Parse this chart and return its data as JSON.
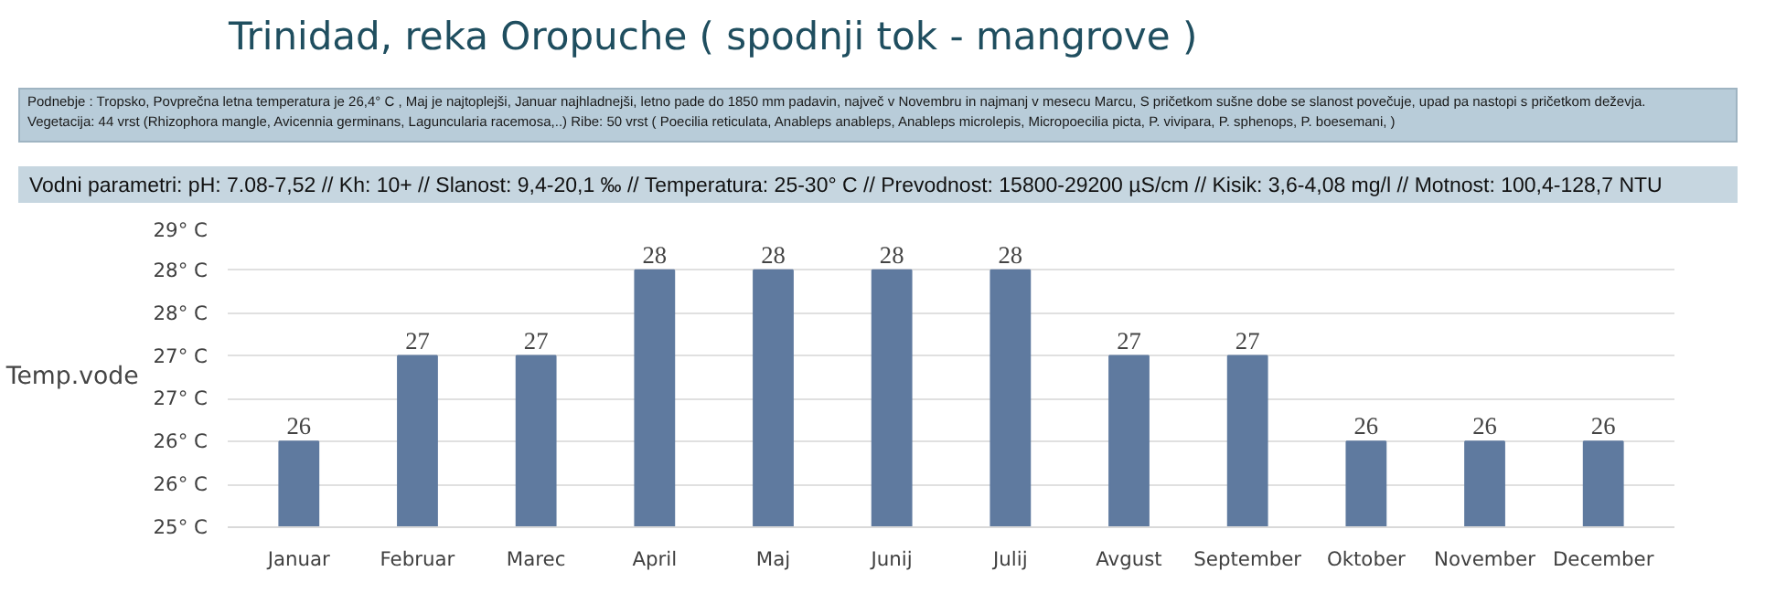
{
  "chart_data": {
    "type": "bar",
    "title": "Trinidad, reka Oropuche  ( spodnji tok - mangrove )",
    "annotations": [
      "Podnebje : Tropsko, Povprečna letna temperatura je 26,4° C  , Maj je najtoplejši, Januar najhladnejši, letno pade do 1850 mm padavin, največ v  Novembru in najmanj v mesecu Marcu, S pričetkom sušne dobe se slanost povečuje, upad pa nastopi s pričetkom deževja.",
      "Vegetacija: 44 vrst (Rhizophora mangle, Avicennia germinans, Laguncularia racemosa,..)    Ribe: 50 vrst  ( Poecilia reticulata, Anableps anableps, Anableps microlepis, Micropoecilia  picta, P. vivipara, P. sphenops, P.  boesemani, )",
      "Vodni parametri: pH: 7.08-7,52 // Kh: 10+ // Slanost: 9,4-20,1 ‰ // Temperatura: 25-30° C // Prevodnost: 15800-29200 µS/cm // Kisik: 3,6-4,08 mg/l  //  Motnost: 100,4-128,7 NTU"
    ],
    "ylabel": "Temp.vode",
    "categories": [
      "Januar",
      "Februar",
      "Marec",
      "April",
      "Maj",
      "Junij",
      "Julij",
      "Avgust",
      "September",
      "Oktober",
      "November",
      "December"
    ],
    "values": [
      26,
      27,
      27,
      28,
      28,
      28,
      28,
      27,
      27,
      26,
      26,
      26
    ],
    "color": "#5f7a9f",
    "ylim": [
      25,
      28.5
    ],
    "yticks": [
      {
        "value": 25,
        "label": "25° C"
      },
      {
        "value": 25.5,
        "label": "26° C"
      },
      {
        "value": 26,
        "label": "26° C"
      },
      {
        "value": 26.5,
        "label": "27° C"
      },
      {
        "value": 27,
        "label": "27° C"
      },
      {
        "value": 27.5,
        "label": "28° C"
      },
      {
        "value": 28,
        "label": "28° C"
      },
      {
        "value": 28.5,
        "label": "29° C"
      }
    ],
    "grid": "y",
    "data_labels": true
  }
}
